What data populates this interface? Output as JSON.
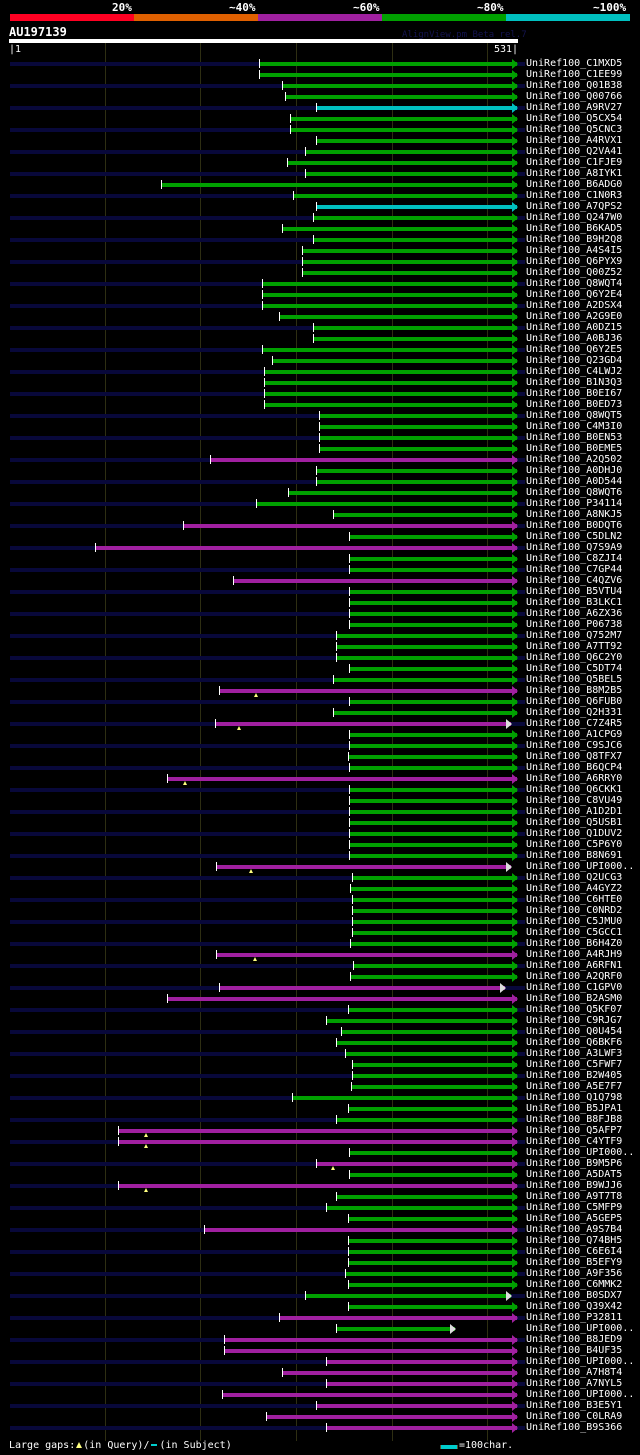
{
  "legend": {
    "scale_labels": [
      "20%",
      "~40%",
      "~60%",
      "~80%",
      "~100%"
    ],
    "scale_colors": [
      "#ff0022",
      "#e06000",
      "#a020a0",
      "#00a000",
      "#00c0c0"
    ]
  },
  "query": {
    "name": "AU197139",
    "start_label": "|1",
    "end_label": "531|",
    "length": 531
  },
  "credit": "AlignView.pm Beta rel.7",
  "colors": {
    "g": "#00a000",
    "m": "#a020a0",
    "c": "#00c0c0"
  },
  "hits": [
    {
      "id": "UniRef100_C1MXD5",
      "s": 261,
      "e": 531,
      "c": "g"
    },
    {
      "id": "UniRef100_C1EE99",
      "s": 261,
      "e": 531,
      "c": "g"
    },
    {
      "id": "UniRef100_Q01B38",
      "s": 285,
      "e": 531,
      "c": "g"
    },
    {
      "id": "UniRef100_Q00766",
      "s": 288,
      "e": 531,
      "c": "g"
    },
    {
      "id": "UniRef100_A9RV27",
      "s": 321,
      "e": 531,
      "c": "c"
    },
    {
      "id": "UniRef100_Q5CX54",
      "s": 294,
      "e": 531,
      "c": "g"
    },
    {
      "id": "UniRef100_Q5CNC3",
      "s": 294,
      "e": 531,
      "c": "g"
    },
    {
      "id": "UniRef100_A4RVX1",
      "s": 321,
      "e": 531,
      "c": "g"
    },
    {
      "id": "UniRef100_Q2VA41",
      "s": 309,
      "e": 531,
      "c": "g"
    },
    {
      "id": "UniRef100_C1FJE9",
      "s": 291,
      "e": 531,
      "c": "g"
    },
    {
      "id": "UniRef100_A8IYK1",
      "s": 309,
      "e": 531,
      "c": "g"
    },
    {
      "id": "UniRef100_B6ADG0",
      "s": 159,
      "e": 531,
      "c": "g"
    },
    {
      "id": "UniRef100_C1N0R3",
      "s": 297,
      "e": 531,
      "c": "g"
    },
    {
      "id": "UniRef100_A7QPS2",
      "s": 321,
      "e": 531,
      "c": "c"
    },
    {
      "id": "UniRef100_Q247W0",
      "s": 318,
      "e": 531,
      "c": "g"
    },
    {
      "id": "UniRef100_B6KAD5",
      "s": 285,
      "e": 531,
      "c": "g"
    },
    {
      "id": "UniRef100_B9H2Q8",
      "s": 318,
      "e": 531,
      "c": "g"
    },
    {
      "id": "UniRef100_A4S4I5",
      "s": 306,
      "e": 531,
      "c": "g"
    },
    {
      "id": "UniRef100_Q6PYX9",
      "s": 306,
      "e": 531,
      "c": "g"
    },
    {
      "id": "UniRef100_Q00Z52",
      "s": 306,
      "e": 531,
      "c": "g"
    },
    {
      "id": "UniRef100_Q8WQT4",
      "s": 264,
      "e": 531,
      "c": "g"
    },
    {
      "id": "UniRef100_Q6Y2E4",
      "s": 264,
      "e": 531,
      "c": "g"
    },
    {
      "id": "UniRef100_A2DSX4",
      "s": 264,
      "e": 531,
      "c": "g"
    },
    {
      "id": "UniRef100_A2G9E0",
      "s": 282,
      "e": 531,
      "c": "g"
    },
    {
      "id": "UniRef100_A0DZ15",
      "s": 318,
      "e": 531,
      "c": "g"
    },
    {
      "id": "UniRef100_A0BJ36",
      "s": 318,
      "e": 531,
      "c": "g"
    },
    {
      "id": "UniRef100_Q6Y2E5",
      "s": 264,
      "e": 531,
      "c": "g"
    },
    {
      "id": "UniRef100_Q23GD4",
      "s": 275,
      "e": 531,
      "c": "g"
    },
    {
      "id": "UniRef100_C4LWJ2",
      "s": 267,
      "e": 531,
      "c": "g"
    },
    {
      "id": "UniRef100_B1N3Q3",
      "s": 267,
      "e": 531,
      "c": "g"
    },
    {
      "id": "UniRef100_B0EI67",
      "s": 267,
      "e": 531,
      "c": "g"
    },
    {
      "id": "UniRef100_B0ED73",
      "s": 267,
      "e": 531,
      "c": "g"
    },
    {
      "id": "UniRef100_Q8WQT5",
      "s": 324,
      "e": 531,
      "c": "g"
    },
    {
      "id": "UniRef100_C4M3I0",
      "s": 324,
      "e": 531,
      "c": "g"
    },
    {
      "id": "UniRef100_B0EN53",
      "s": 324,
      "e": 531,
      "c": "g"
    },
    {
      "id": "UniRef100_B0EME5",
      "s": 324,
      "e": 531,
      "c": "g"
    },
    {
      "id": "UniRef100_A2Q502",
      "s": 210,
      "e": 531,
      "c": "m"
    },
    {
      "id": "UniRef100_A0DHJ0",
      "s": 321,
      "e": 531,
      "c": "g"
    },
    {
      "id": "UniRef100_A0D544",
      "s": 321,
      "e": 531,
      "c": "g"
    },
    {
      "id": "UniRef100_Q8WQT6",
      "s": 292,
      "e": 531,
      "c": "g"
    },
    {
      "id": "UniRef100_P34114",
      "s": 258,
      "e": 531,
      "c": "g"
    },
    {
      "id": "UniRef100_A8NKJ5",
      "s": 339,
      "e": 531,
      "c": "g"
    },
    {
      "id": "UniRef100_B0DQT6",
      "s": 182,
      "e": 531,
      "c": "m"
    },
    {
      "id": "UniRef100_C5DLN2",
      "s": 355,
      "e": 531,
      "c": "g"
    },
    {
      "id": "UniRef100_Q7S9A9",
      "s": 90,
      "e": 531,
      "c": "m"
    },
    {
      "id": "UniRef100_C8ZJI4",
      "s": 355,
      "e": 531,
      "c": "g"
    },
    {
      "id": "UniRef100_C7GP44",
      "s": 355,
      "e": 531,
      "c": "g"
    },
    {
      "id": "UniRef100_C4QZV6",
      "s": 234,
      "e": 531,
      "c": "m"
    },
    {
      "id": "UniRef100_B5VTU4",
      "s": 355,
      "e": 531,
      "c": "g"
    },
    {
      "id": "UniRef100_B3LKC1",
      "s": 355,
      "e": 531,
      "c": "g"
    },
    {
      "id": "UniRef100_A6ZX36",
      "s": 355,
      "e": 531,
      "c": "g"
    },
    {
      "id": "UniRef100_P06738",
      "s": 355,
      "e": 531,
      "c": "g"
    },
    {
      "id": "UniRef100_Q752M7",
      "s": 342,
      "e": 531,
      "c": "g"
    },
    {
      "id": "UniRef100_A7TT92",
      "s": 342,
      "e": 531,
      "c": "g"
    },
    {
      "id": "UniRef100_Q6C2Y0",
      "s": 342,
      "e": 531,
      "c": "g"
    },
    {
      "id": "UniRef100_C5DT74",
      "s": 355,
      "e": 531,
      "c": "g"
    },
    {
      "id": "UniRef100_Q5BEL5",
      "s": 339,
      "e": 531,
      "c": "g"
    },
    {
      "id": "UniRef100_B8M2B5",
      "s": 219,
      "e": 531,
      "c": "m",
      "gaps": [
        258
      ]
    },
    {
      "id": "UniRef100_Q6FUB0",
      "s": 355,
      "e": 531,
      "c": "g"
    },
    {
      "id": "UniRef100_Q2H331",
      "s": 339,
      "e": 531,
      "c": "g"
    },
    {
      "id": "UniRef100_C7Z4R5",
      "s": 215,
      "e": 525,
      "c": "m",
      "gaps": [
        240
      ]
    },
    {
      "id": "UniRef100_A1CPG9",
      "s": 355,
      "e": 531,
      "c": "g"
    },
    {
      "id": "UniRef100_C9SJC6",
      "s": 355,
      "e": 531,
      "c": "g"
    },
    {
      "id": "UniRef100_Q8TFX7",
      "s": 354,
      "e": 531,
      "c": "g"
    },
    {
      "id": "UniRef100_B6QCP4",
      "s": 355,
      "e": 531,
      "c": "g"
    },
    {
      "id": "UniRef100_A6RRY0",
      "s": 165,
      "e": 531,
      "c": "m",
      "gaps": [
        184
      ]
    },
    {
      "id": "UniRef100_Q6CKK1",
      "s": 355,
      "e": 531,
      "c": "g"
    },
    {
      "id": "UniRef100_C8VU49",
      "s": 355,
      "e": 531,
      "c": "g"
    },
    {
      "id": "UniRef100_A1D2D1",
      "s": 355,
      "e": 531,
      "c": "g"
    },
    {
      "id": "UniRef100_Q5USB1",
      "s": 355,
      "e": 531,
      "c": "g"
    },
    {
      "id": "UniRef100_Q1DUV2",
      "s": 355,
      "e": 531,
      "c": "g"
    },
    {
      "id": "UniRef100_C5P6Y0",
      "s": 355,
      "e": 531,
      "c": "g"
    },
    {
      "id": "UniRef100_B8N691",
      "s": 355,
      "e": 531,
      "c": "g"
    },
    {
      "id": "UniRef100_UPI000..",
      "s": 216,
      "e": 525,
      "c": "m",
      "gaps": [
        253
      ]
    },
    {
      "id": "UniRef100_Q2UCG3",
      "s": 359,
      "e": 531,
      "c": "g"
    },
    {
      "id": "UniRef100_A4GYZ2",
      "s": 356,
      "e": 531,
      "c": "g"
    },
    {
      "id": "UniRef100_C6HTE0",
      "s": 359,
      "e": 531,
      "c": "g"
    },
    {
      "id": "UniRef100_C0NRD2",
      "s": 359,
      "e": 531,
      "c": "g"
    },
    {
      "id": "UniRef100_C5JMU0",
      "s": 359,
      "e": 531,
      "c": "g"
    },
    {
      "id": "UniRef100_C5GCC1",
      "s": 359,
      "e": 531,
      "c": "g"
    },
    {
      "id": "UniRef100_B6H4Z0",
      "s": 356,
      "e": 531,
      "c": "g"
    },
    {
      "id": "UniRef100_A4RJH9",
      "s": 216,
      "e": 531,
      "c": "m",
      "gaps": [
        257
      ]
    },
    {
      "id": "UniRef100_A6RFN1",
      "s": 360,
      "e": 531,
      "c": "g"
    },
    {
      "id": "UniRef100_A2QRF0",
      "s": 356,
      "e": 531,
      "c": "g"
    },
    {
      "id": "UniRef100_C1GPV0",
      "s": 219,
      "e": 518,
      "c": "m"
    },
    {
      "id": "UniRef100_B2ASM0",
      "s": 165,
      "e": 531,
      "c": "m"
    },
    {
      "id": "UniRef100_Q5KF07",
      "s": 354,
      "e": 531,
      "c": "g"
    },
    {
      "id": "UniRef100_C9RJG7",
      "s": 331,
      "e": 531,
      "c": "g"
    },
    {
      "id": "UniRef100_Q0U454",
      "s": 347,
      "e": 531,
      "c": "g"
    },
    {
      "id": "UniRef100_Q6BKF6",
      "s": 342,
      "e": 531,
      "c": "g"
    },
    {
      "id": "UniRef100_A3LWF3",
      "s": 351,
      "e": 531,
      "c": "g"
    },
    {
      "id": "UniRef100_C5FWF7",
      "s": 359,
      "e": 531,
      "c": "g"
    },
    {
      "id": "UniRef100_B2W405",
      "s": 359,
      "e": 531,
      "c": "g"
    },
    {
      "id": "UniRef100_A5E7F7",
      "s": 357,
      "e": 531,
      "c": "g"
    },
    {
      "id": "UniRef100_Q1Q798",
      "s": 296,
      "e": 531,
      "c": "g"
    },
    {
      "id": "UniRef100_B5JPA1",
      "s": 354,
      "e": 531,
      "c": "g"
    },
    {
      "id": "UniRef100_B8FJB8",
      "s": 342,
      "e": 531,
      "c": "g"
    },
    {
      "id": "UniRef100_Q5AFP7",
      "s": 114,
      "e": 531,
      "c": "m",
      "gaps": [
        143
      ]
    },
    {
      "id": "UniRef100_C4YTF9",
      "s": 114,
      "e": 531,
      "c": "m",
      "gaps": [
        143
      ]
    },
    {
      "id": "UniRef100_UPI000..",
      "s": 355,
      "e": 531,
      "c": "g"
    },
    {
      "id": "UniRef100_B9M5P6",
      "s": 321,
      "e": 531,
      "c": "m",
      "gaps": [
        339
      ]
    },
    {
      "id": "UniRef100_A5DAT5",
      "s": 355,
      "e": 531,
      "c": "g"
    },
    {
      "id": "UniRef100_B9WJJ6",
      "s": 114,
      "e": 531,
      "c": "m",
      "gaps": [
        143
      ]
    },
    {
      "id": "UniRef100_A9T7T8",
      "s": 342,
      "e": 531,
      "c": "g"
    },
    {
      "id": "UniRef100_C5MFP9",
      "s": 331,
      "e": 531,
      "c": "g"
    },
    {
      "id": "UniRef100_A5GEP5",
      "s": 354,
      "e": 531,
      "c": "g"
    },
    {
      "id": "UniRef100_A9S7B4",
      "s": 204,
      "e": 531,
      "c": "m"
    },
    {
      "id": "UniRef100_Q74BH5",
      "s": 354,
      "e": 531,
      "c": "g"
    },
    {
      "id": "UniRef100_C6E6I4",
      "s": 354,
      "e": 531,
      "c": "g"
    },
    {
      "id": "UniRef100_B5EFY9",
      "s": 354,
      "e": 531,
      "c": "g"
    },
    {
      "id": "UniRef100_A9F356",
      "s": 351,
      "e": 531,
      "c": "g"
    },
    {
      "id": "UniRef100_C6MMK2",
      "s": 354,
      "e": 531,
      "c": "g"
    },
    {
      "id": "UniRef100_B0SDX7",
      "s": 309,
      "e": 525,
      "c": "g"
    },
    {
      "id": "UniRef100_Q39X42",
      "s": 354,
      "e": 531,
      "c": "g"
    },
    {
      "id": "UniRef100_P32811",
      "s": 282,
      "e": 531,
      "c": "m"
    },
    {
      "id": "UniRef100_UPI000..",
      "s": 342,
      "e": 466,
      "c": "g"
    },
    {
      "id": "UniRef100_B8JED9",
      "s": 225,
      "e": 531,
      "c": "m"
    },
    {
      "id": "UniRef100_B4UF35",
      "s": 225,
      "e": 531,
      "c": "m"
    },
    {
      "id": "UniRef100_UPI000..",
      "s": 331,
      "e": 531,
      "c": "m"
    },
    {
      "id": "UniRef100_A7H8T4",
      "s": 285,
      "e": 531,
      "c": "m"
    },
    {
      "id": "UniRef100_A7NYL5",
      "s": 331,
      "e": 531,
      "c": "m"
    },
    {
      "id": "UniRef100_UPI000..",
      "s": 223,
      "e": 531,
      "c": "m"
    },
    {
      "id": "UniRef100_B3E5Y1",
      "s": 321,
      "e": 531,
      "c": "m"
    },
    {
      "id": "UniRef100_C0LRA9",
      "s": 269,
      "e": 531,
      "c": "m"
    },
    {
      "id": "UniRef100_B9S366",
      "s": 331,
      "e": 531,
      "c": "m"
    }
  ],
  "footer": {
    "gaps_label": "Large gaps:",
    "query_gap_label": "(in Query)/",
    "subject_gap_label": "(in Subject)",
    "scale_label": "=100char."
  }
}
